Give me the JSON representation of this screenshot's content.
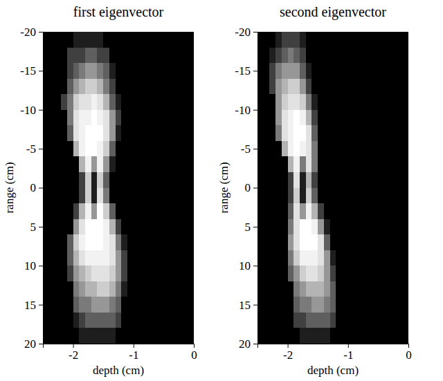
{
  "chart_data": [
    {
      "type": "heatmap",
      "title": "first eigenvector",
      "x_label": "depth (cm)",
      "y_label": "range (cm)",
      "color": "gray",
      "xlim": [
        -2.5,
        0
      ],
      "ylim": [
        -20,
        20
      ],
      "xticks": [
        -2,
        -1,
        0
      ],
      "yticks": [
        -20,
        -15,
        -10,
        -5,
        0,
        5,
        10,
        15,
        20
      ],
      "x": [
        -2.45,
        -2.35,
        -2.25,
        -2.15,
        -2.05,
        -1.95,
        -1.85,
        -1.75,
        -1.65,
        -1.55,
        -1.45,
        -1.35,
        -1.25,
        -1.15,
        -1.05,
        -0.95,
        -0.85,
        -0.75,
        -0.65,
        -0.55,
        -0.45,
        -0.35,
        -0.25,
        -0.15,
        -0.05
      ],
      "y": [
        -19,
        -17,
        -15,
        -13,
        -11,
        -9,
        -7,
        -5,
        -3,
        -1,
        1,
        3,
        5,
        7,
        9,
        11,
        13,
        15,
        17,
        19
      ],
      "cells": [
        [
          0,
          0,
          0,
          0,
          0,
          0.1,
          0.1,
          0.1,
          0.1,
          0.1,
          0,
          0,
          0,
          0,
          0,
          0,
          0,
          0,
          0,
          0,
          0,
          0,
          0,
          0,
          0
        ],
        [
          0,
          0,
          0,
          0,
          0.2,
          0.2,
          0.2,
          0.3,
          0.3,
          0.2,
          0.2,
          0,
          0,
          0,
          0,
          0,
          0,
          0,
          0,
          0,
          0,
          0,
          0,
          0,
          0
        ],
        [
          0,
          0,
          0,
          0,
          0.2,
          0.3,
          0.4,
          0.5,
          0.5,
          0.4,
          0.3,
          0.1,
          0,
          0,
          0,
          0,
          0,
          0,
          0,
          0,
          0,
          0,
          0,
          0,
          0
        ],
        [
          0,
          0,
          0,
          0,
          0.3,
          0.5,
          0.6,
          0.7,
          0.7,
          0.6,
          0.4,
          0.2,
          0,
          0,
          0,
          0,
          0,
          0,
          0,
          0,
          0,
          0,
          0,
          0,
          0
        ],
        [
          0,
          0,
          0,
          0.2,
          0.4,
          0.7,
          0.8,
          0.8,
          0.9,
          0.8,
          0.6,
          0.3,
          0.1,
          0,
          0,
          0,
          0,
          0,
          0,
          0,
          0,
          0,
          0,
          0,
          0
        ],
        [
          0,
          0,
          0,
          0,
          0.4,
          0.8,
          0.9,
          0.9,
          1,
          0.9,
          0.8,
          0.5,
          0.2,
          0,
          0,
          0,
          0,
          0,
          0,
          0,
          0,
          0,
          0,
          0,
          0
        ],
        [
          0,
          0,
          0,
          0,
          0.3,
          0.8,
          0.9,
          1,
          1,
          1,
          0.8,
          0.5,
          0.1,
          0,
          0,
          0,
          0,
          0,
          0,
          0,
          0,
          0,
          0,
          0,
          0
        ],
        [
          0,
          0,
          0,
          0,
          0,
          0.6,
          0.9,
          1,
          1,
          0.9,
          0.7,
          0.3,
          0,
          0,
          0,
          0,
          0,
          0,
          0,
          0,
          0,
          0,
          0,
          0,
          0
        ],
        [
          0,
          0,
          0,
          0,
          0,
          0,
          0.6,
          0.9,
          0.5,
          0.9,
          0.5,
          0.1,
          0,
          0,
          0,
          0,
          0,
          0,
          0,
          0,
          0,
          0,
          0,
          0,
          0
        ],
        [
          0,
          0,
          0,
          0,
          0,
          0,
          0.2,
          0.7,
          0.1,
          0.7,
          0.3,
          0,
          0,
          0,
          0,
          0,
          0,
          0,
          0,
          0,
          0,
          0,
          0,
          0,
          0
        ],
        [
          0,
          0,
          0,
          0,
          0,
          0,
          0.2,
          0.7,
          0.1,
          0.8,
          0.4,
          0,
          0,
          0,
          0,
          0,
          0,
          0,
          0,
          0,
          0,
          0,
          0,
          0,
          0
        ],
        [
          0,
          0,
          0,
          0,
          0,
          0.2,
          0.6,
          0.9,
          0.5,
          1,
          0.7,
          0.3,
          0,
          0,
          0,
          0,
          0,
          0,
          0,
          0,
          0,
          0,
          0,
          0,
          0
        ],
        [
          0,
          0,
          0,
          0,
          0,
          0.5,
          0.8,
          1,
          1,
          1,
          0.9,
          0.6,
          0.2,
          0,
          0,
          0,
          0,
          0,
          0,
          0,
          0,
          0,
          0,
          0,
          0
        ],
        [
          0,
          0,
          0,
          0,
          0.3,
          0.7,
          0.9,
          1,
          1,
          1,
          0.9,
          0.8,
          0.4,
          0.1,
          0,
          0,
          0,
          0,
          0,
          0,
          0,
          0,
          0,
          0,
          0
        ],
        [
          0,
          0,
          0,
          0,
          0.3,
          0.6,
          0.8,
          0.9,
          0.9,
          0.9,
          0.9,
          0.8,
          0.5,
          0.2,
          0,
          0,
          0,
          0,
          0,
          0,
          0,
          0,
          0,
          0,
          0
        ],
        [
          0,
          0,
          0,
          0,
          0.2,
          0.5,
          0.6,
          0.7,
          0.8,
          0.8,
          0.8,
          0.7,
          0.5,
          0.2,
          0,
          0,
          0,
          0,
          0,
          0,
          0,
          0,
          0,
          0,
          0
        ],
        [
          0,
          0,
          0,
          0,
          0,
          0.4,
          0.5,
          0.6,
          0.6,
          0.7,
          0.7,
          0.6,
          0.4,
          0.1,
          0,
          0,
          0,
          0,
          0,
          0,
          0,
          0,
          0,
          0,
          0
        ],
        [
          0,
          0,
          0,
          0,
          0,
          0.3,
          0.4,
          0.4,
          0.5,
          0.5,
          0.5,
          0.4,
          0.3,
          0,
          0,
          0,
          0,
          0,
          0,
          0,
          0,
          0,
          0,
          0,
          0
        ],
        [
          0,
          0,
          0,
          0,
          0,
          0.1,
          0.2,
          0.3,
          0.3,
          0.3,
          0.3,
          0.3,
          0.2,
          0,
          0,
          0,
          0,
          0,
          0,
          0,
          0,
          0,
          0,
          0,
          0
        ],
        [
          0,
          0,
          0,
          0,
          0,
          0,
          0.1,
          0.1,
          0.1,
          0.1,
          0.1,
          0.1,
          0,
          0,
          0,
          0,
          0,
          0,
          0,
          0,
          0,
          0,
          0,
          0,
          0
        ]
      ]
    },
    {
      "type": "heatmap",
      "title": "second eigenvector",
      "x_label": "depth (cm)",
      "y_label": "range (cm)",
      "color": "gray",
      "xlim": [
        -2.5,
        0
      ],
      "ylim": [
        -20,
        20
      ],
      "xticks": [
        -2,
        -1,
        0
      ],
      "yticks": [
        -20,
        -15,
        -10,
        -5,
        0,
        5,
        10,
        15,
        20
      ],
      "x": [
        -2.45,
        -2.35,
        -2.25,
        -2.15,
        -2.05,
        -1.95,
        -1.85,
        -1.75,
        -1.65,
        -1.55,
        -1.45,
        -1.35,
        -1.25,
        -1.15,
        -1.05,
        -0.95,
        -0.85,
        -0.75,
        -0.65,
        -0.55,
        -0.45,
        -0.35,
        -0.25,
        -0.15,
        -0.05
      ],
      "y": [
        -19,
        -17,
        -15,
        -13,
        -11,
        -9,
        -7,
        -5,
        -3,
        -1,
        1,
        3,
        5,
        7,
        9,
        11,
        13,
        15,
        17,
        19
      ],
      "cells": [
        [
          0,
          0,
          0,
          0.1,
          0.2,
          0.2,
          0.2,
          0.1,
          0,
          0,
          0,
          0,
          0,
          0,
          0,
          0,
          0,
          0,
          0,
          0,
          0,
          0,
          0,
          0,
          0
        ],
        [
          0,
          0,
          0.1,
          0.2,
          0.3,
          0.4,
          0.3,
          0.2,
          0,
          0,
          0,
          0,
          0,
          0,
          0,
          0,
          0,
          0,
          0,
          0,
          0,
          0,
          0,
          0,
          0
        ],
        [
          0,
          0,
          0.2,
          0.4,
          0.5,
          0.5,
          0.5,
          0.3,
          0.1,
          0,
          0,
          0,
          0,
          0,
          0,
          0,
          0,
          0,
          0,
          0,
          0,
          0,
          0,
          0,
          0
        ],
        [
          0,
          0,
          0.2,
          0.5,
          0.6,
          0.7,
          0.7,
          0.5,
          0.2,
          0,
          0,
          0,
          0,
          0,
          0,
          0,
          0,
          0,
          0,
          0,
          0,
          0,
          0,
          0,
          0
        ],
        [
          0,
          0,
          0,
          0.5,
          0.7,
          0.8,
          0.8,
          0.7,
          0.4,
          0.1,
          0,
          0,
          0,
          0,
          0,
          0,
          0,
          0,
          0,
          0,
          0,
          0,
          0,
          0,
          0
        ],
        [
          0,
          0,
          0,
          0.5,
          0.8,
          0.9,
          1,
          0.9,
          0.6,
          0.2,
          0,
          0,
          0,
          0,
          0,
          0,
          0,
          0,
          0,
          0,
          0,
          0,
          0,
          0,
          0
        ],
        [
          0,
          0,
          0,
          0.4,
          0.8,
          0.9,
          1,
          1,
          0.8,
          0.3,
          0,
          0,
          0,
          0,
          0,
          0,
          0,
          0,
          0,
          0,
          0,
          0,
          0,
          0,
          0
        ],
        [
          0,
          0,
          0,
          0,
          0.6,
          0.9,
          1,
          0.9,
          0.8,
          0.4,
          0,
          0,
          0,
          0,
          0,
          0,
          0,
          0,
          0,
          0,
          0,
          0,
          0,
          0,
          0
        ],
        [
          0,
          0,
          0,
          0,
          0,
          0.6,
          0.9,
          0.4,
          0.8,
          0.4,
          0,
          0,
          0,
          0,
          0,
          0,
          0,
          0,
          0,
          0,
          0,
          0,
          0,
          0,
          0
        ],
        [
          0,
          0,
          0,
          0,
          0,
          0.2,
          0.8,
          0.1,
          0.6,
          0.2,
          0,
          0,
          0,
          0,
          0,
          0,
          0,
          0,
          0,
          0,
          0,
          0,
          0,
          0,
          0
        ],
        [
          0,
          0,
          0,
          0,
          0,
          0.2,
          0.7,
          0.1,
          0.7,
          0.3,
          0,
          0,
          0,
          0,
          0,
          0,
          0,
          0,
          0,
          0,
          0,
          0,
          0,
          0,
          0
        ],
        [
          0,
          0,
          0,
          0,
          0,
          0.3,
          0.8,
          0.5,
          0.9,
          0.6,
          0.2,
          0,
          0,
          0,
          0,
          0,
          0,
          0,
          0,
          0,
          0,
          0,
          0,
          0,
          0
        ],
        [
          0,
          0,
          0,
          0,
          0,
          0.4,
          0.8,
          1,
          1,
          0.9,
          0.5,
          0.1,
          0,
          0,
          0,
          0,
          0,
          0,
          0,
          0,
          0,
          0,
          0,
          0,
          0
        ],
        [
          0,
          0,
          0,
          0,
          0,
          0.5,
          0.8,
          1,
          1,
          1,
          0.8,
          0.3,
          0,
          0,
          0,
          0,
          0,
          0,
          0,
          0,
          0,
          0,
          0,
          0,
          0
        ],
        [
          0,
          0,
          0,
          0,
          0,
          0.4,
          0.7,
          0.9,
          0.9,
          0.9,
          0.8,
          0.5,
          0.1,
          0,
          0,
          0,
          0,
          0,
          0,
          0,
          0,
          0,
          0,
          0,
          0
        ],
        [
          0,
          0,
          0,
          0,
          0,
          0.3,
          0.5,
          0.7,
          0.8,
          0.8,
          0.7,
          0.5,
          0.2,
          0,
          0,
          0,
          0,
          0,
          0,
          0,
          0,
          0,
          0,
          0,
          0
        ],
        [
          0,
          0,
          0,
          0,
          0,
          0,
          0.4,
          0.5,
          0.6,
          0.6,
          0.6,
          0.5,
          0.3,
          0,
          0,
          0,
          0,
          0,
          0,
          0,
          0,
          0,
          0,
          0,
          0
        ],
        [
          0,
          0,
          0,
          0,
          0,
          0,
          0.3,
          0.4,
          0.4,
          0.5,
          0.5,
          0.4,
          0.3,
          0,
          0,
          0,
          0,
          0,
          0,
          0,
          0,
          0,
          0,
          0,
          0
        ],
        [
          0,
          0,
          0,
          0,
          0,
          0,
          0.2,
          0.2,
          0.3,
          0.3,
          0.3,
          0.3,
          0.2,
          0,
          0,
          0,
          0,
          0,
          0,
          0,
          0,
          0,
          0,
          0,
          0
        ],
        [
          0,
          0,
          0,
          0,
          0,
          0,
          0,
          0.1,
          0.1,
          0.1,
          0.1,
          0.1,
          0,
          0,
          0,
          0,
          0,
          0,
          0,
          0,
          0,
          0,
          0,
          0,
          0
        ]
      ]
    }
  ]
}
